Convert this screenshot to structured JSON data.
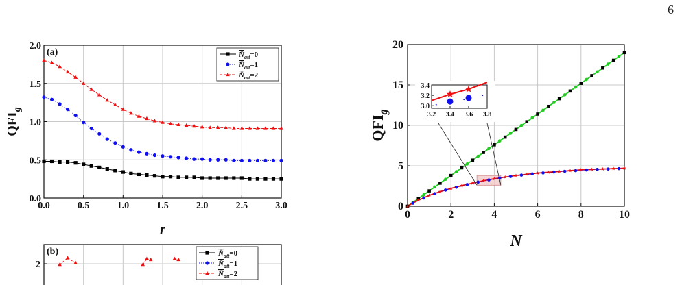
{
  "page": {
    "number": "6"
  },
  "chart_data": [
    {
      "id": "a",
      "type": "line",
      "panel_label": "(a)",
      "xlabel": "r",
      "ylabel": "QFI",
      "ylabel_sub": "g",
      "xlim": [
        0,
        3
      ],
      "ylim": [
        0,
        2
      ],
      "x_ticks": [
        "0.0",
        "0.5",
        "1.0",
        "1.5",
        "2.0",
        "2.5",
        "3.0"
      ],
      "y_ticks": [
        "0.0",
        "0.5",
        "1.0",
        "1.5",
        "2.0"
      ],
      "grid": true,
      "legend_position": "top-right",
      "series": [
        {
          "name": "N̄",
          "sub": "att",
          "value_text": "=0",
          "color": "#000000",
          "marker": "square",
          "dash": "none",
          "x": [
            0,
            0.1,
            0.2,
            0.3,
            0.4,
            0.5,
            0.6,
            0.7,
            0.8,
            0.9,
            1.0,
            1.1,
            1.2,
            1.3,
            1.4,
            1.5,
            1.6,
            1.7,
            1.8,
            1.9,
            2.0,
            2.1,
            2.2,
            2.3,
            2.4,
            2.5,
            2.6,
            2.7,
            2.8,
            2.9,
            3.0
          ],
          "y": [
            0.48,
            0.48,
            0.47,
            0.47,
            0.46,
            0.44,
            0.42,
            0.4,
            0.38,
            0.36,
            0.34,
            0.32,
            0.31,
            0.3,
            0.29,
            0.28,
            0.28,
            0.27,
            0.27,
            0.27,
            0.26,
            0.26,
            0.26,
            0.26,
            0.26,
            0.26,
            0.25,
            0.25,
            0.25,
            0.25,
            0.25
          ]
        },
        {
          "name": "N̄",
          "sub": "att",
          "value_text": "=1",
          "color": "#1010ee",
          "marker": "circle",
          "dash": "1,2",
          "x": [
            0,
            0.1,
            0.2,
            0.3,
            0.4,
            0.5,
            0.6,
            0.7,
            0.8,
            0.9,
            1.0,
            1.1,
            1.2,
            1.3,
            1.4,
            1.5,
            1.6,
            1.7,
            1.8,
            1.9,
            2.0,
            2.1,
            2.2,
            2.3,
            2.4,
            2.5,
            2.6,
            2.7,
            2.8,
            2.9,
            3.0
          ],
          "y": [
            1.32,
            1.29,
            1.23,
            1.16,
            1.08,
            0.99,
            0.91,
            0.84,
            0.77,
            0.72,
            0.67,
            0.63,
            0.6,
            0.58,
            0.56,
            0.55,
            0.54,
            0.53,
            0.52,
            0.51,
            0.51,
            0.5,
            0.5,
            0.5,
            0.49,
            0.49,
            0.49,
            0.49,
            0.49,
            0.49,
            0.49
          ]
        },
        {
          "name": "N̄",
          "sub": "att",
          "value_text": "=2",
          "color": "#ee1010",
          "marker": "triangle",
          "dash": "4,2",
          "x": [
            0,
            0.1,
            0.2,
            0.3,
            0.4,
            0.5,
            0.6,
            0.7,
            0.8,
            0.9,
            1.0,
            1.1,
            1.2,
            1.3,
            1.4,
            1.5,
            1.6,
            1.7,
            1.8,
            1.9,
            2.0,
            2.1,
            2.2,
            2.3,
            2.4,
            2.5,
            2.6,
            2.7,
            2.8,
            2.9,
            3.0
          ],
          "y": [
            1.8,
            1.77,
            1.72,
            1.65,
            1.58,
            1.5,
            1.42,
            1.35,
            1.28,
            1.22,
            1.16,
            1.11,
            1.07,
            1.04,
            1.01,
            0.99,
            0.97,
            0.96,
            0.95,
            0.94,
            0.93,
            0.92,
            0.92,
            0.92,
            0.91,
            0.91,
            0.91,
            0.91,
            0.91,
            0.91,
            0.91
          ]
        }
      ]
    },
    {
      "id": "b",
      "type": "line",
      "panel_label": "(b)",
      "y_ticks": [
        "2"
      ],
      "grid": true,
      "legend_position": "top-right",
      "series": [
        {
          "name": "N̄",
          "sub": "att",
          "value_text": "=0",
          "color": "#000000",
          "marker": "square"
        },
        {
          "name": "N̄",
          "sub": "att",
          "value_text": "=1",
          "color": "#1010ee",
          "marker": "circle"
        },
        {
          "name": "N̄",
          "sub": "att",
          "value_text": "=2",
          "color": "#ee1010",
          "marker": "triangle",
          "x": [
            0.2,
            0.3,
            0.4,
            1.25,
            1.3,
            1.35,
            1.65,
            1.7,
            2.55,
            2.6,
            2.65
          ],
          "y": [
            1.95,
            2.35,
            2.05,
            1.95,
            2.3,
            2.25,
            2.3,
            2.25,
            2.05,
            2.35,
            1.95
          ]
        }
      ]
    },
    {
      "id": "c",
      "type": "line",
      "xlabel": "N",
      "ylabel": "QFI",
      "ylabel_sub": "g",
      "xlim": [
        0,
        10
      ],
      "ylim": [
        0,
        20
      ],
      "x_ticks": [
        "0",
        "2",
        "4",
        "6",
        "8",
        "10"
      ],
      "y_ticks": [
        "0",
        "5",
        "10",
        "15",
        "20"
      ],
      "grid": true,
      "series": [
        {
          "color": "#000000",
          "marker": "square",
          "line": "#22cc22",
          "x": [
            0,
            0.5,
            1,
            1.5,
            2,
            2.5,
            3,
            3.5,
            4,
            4.5,
            5,
            5.5,
            6,
            6.5,
            7,
            7.5,
            8,
            8.5,
            9,
            9.5,
            10
          ],
          "y": [
            0,
            0.95,
            1.9,
            2.85,
            3.8,
            4.75,
            5.7,
            6.65,
            7.6,
            8.55,
            9.5,
            10.45,
            11.4,
            12.35,
            13.3,
            14.25,
            15.2,
            16.15,
            17.1,
            18.05,
            19.0
          ]
        },
        {
          "color": "#22cc22",
          "marker": "circle",
          "line": "#22cc22",
          "x": [
            0.25,
            0.75,
            1.25,
            1.75,
            2.25,
            2.75,
            3.25,
            3.75,
            4.25,
            4.75,
            5.25,
            5.75,
            6.25,
            6.75,
            7.25,
            7.75,
            8.25,
            8.75,
            9.25,
            9.75
          ],
          "y": [
            0.48,
            1.43,
            2.38,
            3.33,
            4.28,
            5.23,
            6.18,
            7.13,
            8.08,
            9.03,
            9.98,
            10.93,
            11.88,
            12.83,
            13.78,
            14.73,
            15.68,
            16.63,
            17.58,
            18.53
          ]
        },
        {
          "color": "#ee1010",
          "marker": "star",
          "line": "#ee1010",
          "x": [
            0,
            0.25,
            0.5,
            0.75,
            1,
            1.5,
            2,
            2.5,
            3,
            3.5,
            4,
            4.5,
            5,
            5.5,
            6,
            6.5,
            7,
            7.5,
            8,
            8.5,
            9,
            9.5,
            10
          ],
          "y": [
            0,
            0.4,
            0.75,
            1.05,
            1.35,
            1.8,
            2.2,
            2.55,
            2.85,
            3.15,
            3.4,
            3.6,
            3.8,
            3.95,
            4.1,
            4.2,
            4.3,
            4.4,
            4.5,
            4.55,
            4.6,
            4.65,
            4.7
          ]
        },
        {
          "color": "#1010ee",
          "marker": "circle",
          "line": "#1010ee",
          "x": [
            0.25,
            0.75,
            1.25,
            1.75,
            2.25,
            2.75,
            3.25,
            3.75,
            4.25,
            4.75,
            5.25,
            5.75,
            6.25,
            6.75,
            7.25,
            7.75,
            8.25,
            8.75,
            9.25,
            9.75
          ],
          "y": [
            0.38,
            1.02,
            1.55,
            2.0,
            2.35,
            2.68,
            2.98,
            3.25,
            3.48,
            3.68,
            3.85,
            4.0,
            4.12,
            4.23,
            4.32,
            4.4,
            4.48,
            4.55,
            4.6,
            4.65
          ]
        }
      ],
      "inset": {
        "xlim": [
          3.2,
          3.8
        ],
        "ylim": [
          2.95,
          3.4
        ],
        "x_ticks": [
          "3.2",
          "3.4",
          "3.6",
          "3.8"
        ],
        "y_ticks": [
          "3.0",
          "3.2",
          "3.4"
        ],
        "zoom_region": {
          "x": [
            3.2,
            4.3
          ],
          "y": [
            2.6,
            3.8
          ]
        },
        "series": [
          {
            "color": "#ee1010",
            "marker": "star",
            "x": [
              3.2,
              3.4,
              3.6,
              3.8
            ],
            "y": [
              3.1,
              3.22,
              3.32,
              3.45
            ]
          },
          {
            "color": "#1010ee",
            "marker": "circle",
            "x": [
              3.25,
              3.4,
              3.55,
              3.6,
              3.75
            ],
            "y": [
              3.02,
              3.08,
              3.12,
              3.15,
              3.2
            ]
          }
        ]
      }
    }
  ]
}
